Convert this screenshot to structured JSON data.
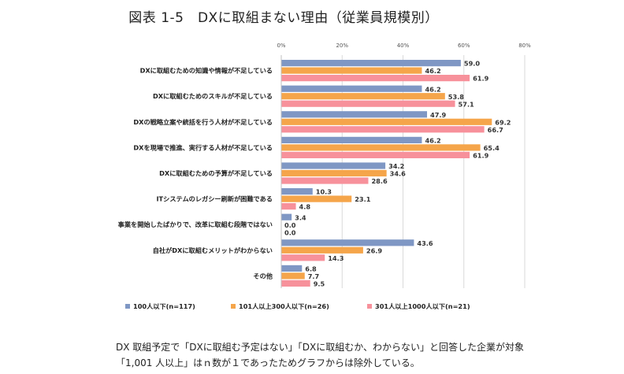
{
  "chart_data": {
    "type": "bar",
    "orientation": "horizontal",
    "title": "図表 1-5　DXに取組まない理由（従業員規模別）",
    "xlim": [
      0,
      80
    ],
    "xticks": [
      "0%",
      "20%",
      "40%",
      "60%",
      "80%"
    ],
    "xtick_values": [
      0,
      20,
      40,
      60,
      80
    ],
    "grid": true,
    "legend_position": "bottom",
    "categories": [
      "DXに取組むための知識や情報が不足している",
      "DXに取組むためのスキルが不足している",
      "DXの戦略立案や統括を行う人材が不足している",
      "DXを現場で推進、実行する人材が不足している",
      "DXに取組むための予算が不足している",
      "ITシステムのレガシー刷新が困難である",
      "事業を開始したばかりで、改革に取組む段階ではない",
      "自社がDXに取組むメリットがわからない",
      "その他"
    ],
    "series": [
      {
        "name": "100人以下(n=117)",
        "color": "#7f97c4",
        "values": [
          59.0,
          46.2,
          47.9,
          46.2,
          34.2,
          10.3,
          3.4,
          43.6,
          6.8
        ]
      },
      {
        "name": "101人以上300人以下(n=26)",
        "color": "#f5a54a",
        "values": [
          46.2,
          53.8,
          69.2,
          65.4,
          34.6,
          23.1,
          0.0,
          26.9,
          7.7
        ]
      },
      {
        "name": "301人以上1000人以下(n=21)",
        "color": "#f7919b",
        "values": [
          61.9,
          57.1,
          66.7,
          61.9,
          28.6,
          4.8,
          0.0,
          14.3,
          9.5
        ]
      }
    ]
  },
  "notes": {
    "line1": "DX 取組予定で「DXに取組む予定はない」「DXに取組むか、わからない」と回答した企業が対象",
    "line2": "「1,001 人以上」はｎ数が１であったためグラフからは除外している。"
  }
}
